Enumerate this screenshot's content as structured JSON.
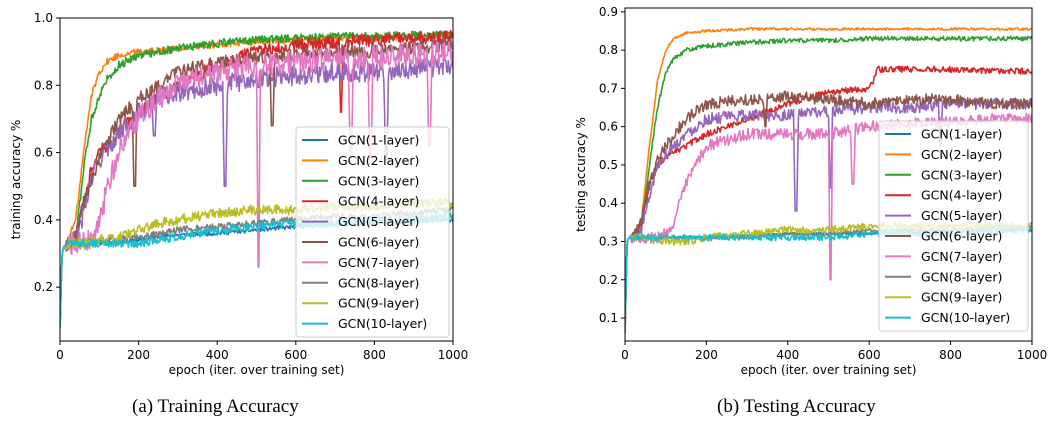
{
  "chart_data": [
    {
      "type": "line",
      "xlabel": "epoch (iter. over training set)",
      "ylabel": "training accuracy %",
      "xlim": [
        0,
        1000
      ],
      "ylim": [
        0.04,
        1.0
      ],
      "xticks": [
        0,
        200,
        400,
        600,
        800,
        1000
      ],
      "yticks": [
        0.2,
        0.4,
        0.6,
        0.8,
        1.0
      ],
      "ytick_labels": [
        "0.2",
        "0.4",
        "0.6",
        "0.8",
        "1.0"
      ],
      "grid": false,
      "legend_position": "center-right",
      "series": [
        {
          "name": "GCN(1-layer)",
          "color": "#1f77b4",
          "x": [
            0,
            5,
            10,
            20,
            40,
            60,
            80,
            100,
            150,
            200,
            250,
            300,
            400,
            500,
            600,
            700,
            800,
            900,
            1000
          ],
          "y": [
            0.08,
            0.3,
            0.32,
            0.325,
            0.33,
            0.33,
            0.33,
            0.33,
            0.335,
            0.34,
            0.35,
            0.355,
            0.36,
            0.37,
            0.38,
            0.385,
            0.39,
            0.395,
            0.4
          ],
          "noise": 0.006,
          "spikes": []
        },
        {
          "name": "GCN(2-layer)",
          "color": "#ff7f0e",
          "x": [
            0,
            5,
            10,
            20,
            40,
            60,
            80,
            100,
            120,
            150,
            200,
            300,
            400,
            500,
            600,
            700,
            800,
            900,
            1000
          ],
          "y": [
            0.08,
            0.3,
            0.32,
            0.34,
            0.4,
            0.6,
            0.77,
            0.84,
            0.87,
            0.89,
            0.9,
            0.91,
            0.92,
            0.93,
            0.935,
            0.94,
            0.94,
            0.945,
            0.95
          ],
          "noise": 0.01,
          "spikes": []
        },
        {
          "name": "GCN(3-layer)",
          "color": "#2ca02c",
          "x": [
            0,
            5,
            10,
            20,
            40,
            60,
            80,
            100,
            120,
            150,
            200,
            300,
            400,
            500,
            600,
            700,
            800,
            900,
            1000
          ],
          "y": [
            0.08,
            0.3,
            0.32,
            0.33,
            0.35,
            0.55,
            0.7,
            0.77,
            0.82,
            0.86,
            0.89,
            0.91,
            0.925,
            0.935,
            0.94,
            0.945,
            0.945,
            0.95,
            0.95
          ],
          "noise": 0.012,
          "spikes": []
        },
        {
          "name": "GCN(4-layer)",
          "color": "#d62728",
          "x": [
            0,
            5,
            10,
            20,
            40,
            60,
            80,
            100,
            150,
            200,
            250,
            300,
            400,
            500,
            600,
            700,
            800,
            900,
            1000
          ],
          "y": [
            0.08,
            0.3,
            0.32,
            0.33,
            0.34,
            0.45,
            0.55,
            0.6,
            0.66,
            0.72,
            0.76,
            0.8,
            0.86,
            0.9,
            0.92,
            0.93,
            0.935,
            0.94,
            0.945
          ],
          "noise": 0.02,
          "spikes": [
            [
              715,
              0.72
            ]
          ]
        },
        {
          "name": "GCN(5-layer)",
          "color": "#9467bd",
          "x": [
            0,
            5,
            10,
            20,
            40,
            60,
            80,
            100,
            150,
            200,
            250,
            300,
            400,
            500,
            600,
            700,
            800,
            900,
            1000
          ],
          "y": [
            0.08,
            0.3,
            0.32,
            0.33,
            0.34,
            0.42,
            0.52,
            0.58,
            0.66,
            0.72,
            0.76,
            0.78,
            0.8,
            0.82,
            0.83,
            0.84,
            0.84,
            0.85,
            0.86
          ],
          "noise": 0.03,
          "spikes": [
            [
              240,
              0.65
            ],
            [
              420,
              0.5
            ],
            [
              830,
              0.58
            ]
          ]
        },
        {
          "name": "GCN(6-layer)",
          "color": "#8c564b",
          "x": [
            0,
            5,
            10,
            20,
            40,
            60,
            80,
            100,
            150,
            200,
            250,
            300,
            400,
            500,
            600,
            700,
            800,
            900,
            1000
          ],
          "y": [
            0.08,
            0.3,
            0.32,
            0.33,
            0.35,
            0.45,
            0.52,
            0.58,
            0.7,
            0.76,
            0.8,
            0.84,
            0.87,
            0.88,
            0.89,
            0.9,
            0.9,
            0.91,
            0.92
          ],
          "noise": 0.02,
          "spikes": [
            [
              190,
              0.5
            ],
            [
              540,
              0.68
            ]
          ]
        },
        {
          "name": "GCN(7-layer)",
          "color": "#e377c2",
          "x": [
            0,
            5,
            10,
            20,
            40,
            60,
            80,
            100,
            120,
            150,
            200,
            250,
            300,
            400,
            500,
            600,
            700,
            800,
            900,
            1000
          ],
          "y": [
            0.08,
            0.3,
            0.32,
            0.33,
            0.33,
            0.33,
            0.34,
            0.38,
            0.5,
            0.6,
            0.7,
            0.76,
            0.8,
            0.84,
            0.86,
            0.87,
            0.88,
            0.88,
            0.89,
            0.9
          ],
          "noise": 0.035,
          "spikes": [
            [
              505,
              0.26
            ],
            [
              740,
              0.6
            ],
            [
              790,
              0.58
            ],
            [
              940,
              0.62
            ]
          ]
        },
        {
          "name": "GCN(8-layer)",
          "color": "#7f7f7f",
          "x": [
            0,
            5,
            10,
            20,
            40,
            60,
            80,
            100,
            150,
            200,
            250,
            300,
            400,
            500,
            600,
            700,
            800,
            900,
            1000
          ],
          "y": [
            0.08,
            0.3,
            0.32,
            0.33,
            0.33,
            0.33,
            0.335,
            0.34,
            0.345,
            0.35,
            0.36,
            0.37,
            0.38,
            0.39,
            0.4,
            0.41,
            0.41,
            0.42,
            0.43
          ],
          "noise": 0.01,
          "spikes": []
        },
        {
          "name": "GCN(9-layer)",
          "color": "#bcbd22",
          "x": [
            0,
            5,
            10,
            20,
            40,
            60,
            80,
            100,
            150,
            200,
            250,
            300,
            400,
            500,
            600,
            700,
            800,
            900,
            1000
          ],
          "y": [
            0.08,
            0.3,
            0.32,
            0.33,
            0.33,
            0.33,
            0.335,
            0.34,
            0.35,
            0.37,
            0.39,
            0.4,
            0.42,
            0.43,
            0.43,
            0.44,
            0.44,
            0.45,
            0.45
          ],
          "noise": 0.015,
          "spikes": []
        },
        {
          "name": "GCN(10-layer)",
          "color": "#17becf",
          "x": [
            0,
            5,
            10,
            20,
            40,
            60,
            80,
            100,
            150,
            200,
            250,
            300,
            400,
            500,
            600,
            700,
            800,
            900,
            1000
          ],
          "y": [
            0.08,
            0.3,
            0.32,
            0.33,
            0.33,
            0.33,
            0.33,
            0.33,
            0.33,
            0.33,
            0.34,
            0.35,
            0.37,
            0.38,
            0.39,
            0.39,
            0.4,
            0.4,
            0.41
          ],
          "noise": 0.012,
          "spikes": []
        }
      ]
    },
    {
      "type": "line",
      "xlabel": "epoch (iter. over training set)",
      "ylabel": "testing accuracy %",
      "xlim": [
        0,
        1000
      ],
      "ylim": [
        0.04,
        0.91
      ],
      "xticks": [
        0,
        200,
        400,
        600,
        800,
        1000
      ],
      "yticks": [
        0.1,
        0.2,
        0.3,
        0.4,
        0.5,
        0.6,
        0.7,
        0.8,
        0.9
      ],
      "ytick_labels": [
        "0.1",
        "0.2",
        "0.3",
        "0.4",
        "0.5",
        "0.6",
        "0.7",
        "0.8",
        "0.9"
      ],
      "grid": false,
      "legend_position": "center-right",
      "series": [
        {
          "name": "GCN(1-layer)",
          "color": "#1f77b4",
          "x": [
            0,
            5,
            10,
            20,
            50,
            100,
            150,
            200,
            300,
            400,
            500,
            600,
            700,
            800,
            900,
            1000
          ],
          "y": [
            0.06,
            0.3,
            0.31,
            0.31,
            0.31,
            0.31,
            0.31,
            0.31,
            0.315,
            0.32,
            0.32,
            0.32,
            0.325,
            0.325,
            0.33,
            0.33
          ],
          "noise": 0.003,
          "spikes": []
        },
        {
          "name": "GCN(2-layer)",
          "color": "#ff7f0e",
          "x": [
            0,
            5,
            10,
            20,
            40,
            60,
            80,
            100,
            120,
            150,
            200,
            300,
            400,
            500,
            600,
            700,
            800,
            900,
            1000
          ],
          "y": [
            0.06,
            0.3,
            0.31,
            0.31,
            0.35,
            0.55,
            0.72,
            0.8,
            0.83,
            0.845,
            0.85,
            0.855,
            0.855,
            0.855,
            0.855,
            0.855,
            0.855,
            0.855,
            0.855
          ],
          "noise": 0.003,
          "spikes": []
        },
        {
          "name": "GCN(3-layer)",
          "color": "#2ca02c",
          "x": [
            0,
            5,
            10,
            20,
            40,
            60,
            80,
            100,
            120,
            150,
            200,
            300,
            400,
            500,
            600,
            700,
            800,
            900,
            1000
          ],
          "y": [
            0.06,
            0.3,
            0.31,
            0.31,
            0.33,
            0.5,
            0.65,
            0.74,
            0.78,
            0.8,
            0.81,
            0.82,
            0.825,
            0.825,
            0.83,
            0.83,
            0.83,
            0.83,
            0.83
          ],
          "noise": 0.006,
          "spikes": []
        },
        {
          "name": "GCN(4-layer)",
          "color": "#d62728",
          "x": [
            0,
            5,
            10,
            20,
            40,
            60,
            80,
            100,
            150,
            200,
            300,
            400,
            500,
            600,
            610,
            620,
            700,
            800,
            900,
            1000
          ],
          "y": [
            0.06,
            0.3,
            0.31,
            0.31,
            0.35,
            0.45,
            0.5,
            0.52,
            0.55,
            0.58,
            0.62,
            0.66,
            0.69,
            0.7,
            0.72,
            0.75,
            0.75,
            0.75,
            0.745,
            0.745
          ],
          "noise": 0.008,
          "spikes": []
        },
        {
          "name": "GCN(5-layer)",
          "color": "#9467bd",
          "x": [
            0,
            5,
            10,
            20,
            40,
            60,
            80,
            100,
            150,
            200,
            300,
            400,
            500,
            600,
            700,
            800,
            900,
            1000
          ],
          "y": [
            0.06,
            0.3,
            0.31,
            0.31,
            0.33,
            0.42,
            0.5,
            0.53,
            0.58,
            0.62,
            0.63,
            0.63,
            0.64,
            0.65,
            0.65,
            0.66,
            0.66,
            0.66
          ],
          "noise": 0.015,
          "spikes": [
            [
              420,
              0.38
            ],
            [
              505,
              0.44
            ],
            [
              775,
              0.55
            ]
          ]
        },
        {
          "name": "GCN(6-layer)",
          "color": "#8c564b",
          "x": [
            0,
            5,
            10,
            20,
            40,
            60,
            80,
            100,
            150,
            200,
            300,
            400,
            500,
            600,
            700,
            800,
            900,
            1000
          ],
          "y": [
            0.06,
            0.3,
            0.31,
            0.31,
            0.35,
            0.45,
            0.52,
            0.55,
            0.62,
            0.66,
            0.67,
            0.68,
            0.67,
            0.66,
            0.67,
            0.67,
            0.66,
            0.66
          ],
          "noise": 0.015,
          "spikes": [
            [
              345,
              0.6
            ]
          ]
        },
        {
          "name": "GCN(7-layer)",
          "color": "#e377c2",
          "x": [
            0,
            5,
            10,
            20,
            40,
            60,
            80,
            100,
            120,
            150,
            200,
            300,
            400,
            500,
            600,
            700,
            800,
            900,
            1000
          ],
          "y": [
            0.06,
            0.3,
            0.31,
            0.31,
            0.31,
            0.31,
            0.31,
            0.32,
            0.35,
            0.45,
            0.55,
            0.58,
            0.58,
            0.58,
            0.6,
            0.61,
            0.61,
            0.62,
            0.62
          ],
          "noise": 0.015,
          "spikes": [
            [
              505,
              0.2
            ],
            [
              560,
              0.45
            ]
          ]
        },
        {
          "name": "GCN(8-layer)",
          "color": "#7f7f7f",
          "x": [
            0,
            5,
            10,
            20,
            50,
            100,
            150,
            200,
            300,
            400,
            500,
            600,
            700,
            800,
            900,
            1000
          ],
          "y": [
            0.06,
            0.3,
            0.31,
            0.31,
            0.31,
            0.31,
            0.31,
            0.31,
            0.31,
            0.32,
            0.32,
            0.33,
            0.33,
            0.33,
            0.34,
            0.34
          ],
          "noise": 0.004,
          "spikes": []
        },
        {
          "name": "GCN(9-layer)",
          "color": "#bcbd22",
          "x": [
            0,
            5,
            10,
            20,
            50,
            100,
            150,
            200,
            300,
            400,
            500,
            600,
            700,
            800,
            900,
            1000
          ],
          "y": [
            0.06,
            0.3,
            0.31,
            0.31,
            0.31,
            0.3,
            0.3,
            0.31,
            0.32,
            0.33,
            0.33,
            0.34,
            0.34,
            0.34,
            0.34,
            0.34
          ],
          "noise": 0.01,
          "spikes": []
        },
        {
          "name": "GCN(10-layer)",
          "color": "#17becf",
          "x": [
            0,
            5,
            10,
            20,
            50,
            100,
            150,
            200,
            300,
            400,
            500,
            600,
            700,
            800,
            900,
            1000
          ],
          "y": [
            0.06,
            0.3,
            0.31,
            0.31,
            0.31,
            0.31,
            0.31,
            0.31,
            0.31,
            0.31,
            0.31,
            0.32,
            0.32,
            0.32,
            0.33,
            0.33
          ],
          "noise": 0.008,
          "spikes": []
        }
      ]
    }
  ],
  "captions": [
    "(a) Training Accuracy",
    "(b) Testing Accuracy"
  ]
}
